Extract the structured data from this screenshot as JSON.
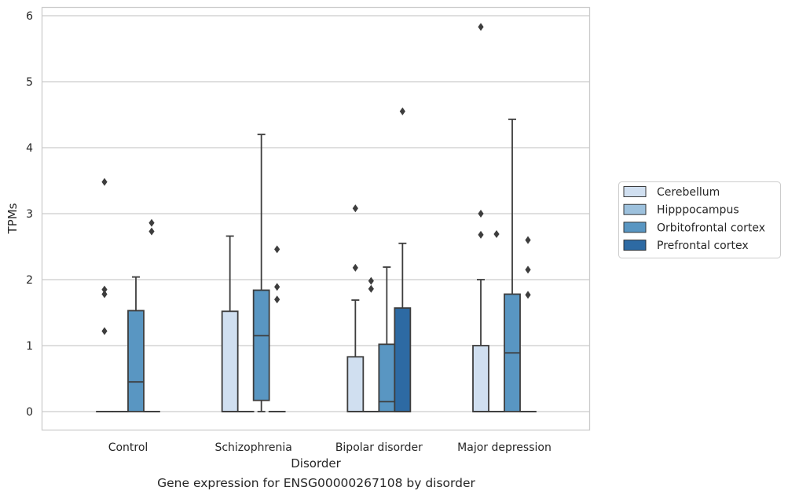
{
  "chart_data": {
    "type": "box",
    "title": "",
    "caption": "Gene expression for ENSG00000267108 by disorder",
    "xlabel": "Disorder",
    "ylabel": "TPMs",
    "ylim": [
      -0.28,
      6.14
    ],
    "yticks": [
      "0",
      "1",
      "2",
      "3",
      "4",
      "5",
      "6"
    ],
    "grid": "horizontal",
    "legend_position": "right",
    "categories": [
      "Control",
      "Schizophrenia",
      "Bipolar disorder",
      "Major depression"
    ],
    "series": [
      {
        "name": "Cerebellum",
        "color": "#d0dff0",
        "boxes": [
          {
            "q1": 0,
            "median": 0,
            "q3": 0,
            "whislo": 0,
            "whishi": 0,
            "fliers": [
              1.22,
              1.78,
              1.85,
              3.48
            ]
          },
          {
            "q1": 0,
            "median": 0,
            "q3": 1.52,
            "whislo": 0,
            "whishi": 2.66,
            "fliers": []
          },
          {
            "q1": 0,
            "median": 0,
            "q3": 0.83,
            "whislo": 0,
            "whishi": 1.69,
            "fliers": [
              2.18,
              3.08
            ]
          },
          {
            "q1": 0,
            "median": 0,
            "q3": 1.0,
            "whislo": 0,
            "whishi": 2.0,
            "fliers": [
              2.68,
              3.0,
              5.83
            ]
          }
        ]
      },
      {
        "name": "Hipppocampus",
        "color": "#9dc1dd",
        "boxes": [
          {
            "q1": 0,
            "median": 0,
            "q3": 0,
            "whislo": 0,
            "whishi": 0,
            "fliers": []
          },
          {
            "q1": 0,
            "median": 0,
            "q3": 0,
            "whislo": 0,
            "whishi": 0,
            "fliers": []
          },
          {
            "q1": 0,
            "median": 0,
            "q3": 0,
            "whislo": 0,
            "whishi": 0,
            "fliers": [
              1.86,
              1.98
            ]
          },
          {
            "q1": 0,
            "median": 0,
            "q3": 0,
            "whislo": 0,
            "whishi": 0,
            "fliers": [
              2.69
            ]
          }
        ]
      },
      {
        "name": "Orbitofrontal cortex",
        "color": "#5996c2",
        "boxes": [
          {
            "q1": 0,
            "median": 0.45,
            "q3": 1.53,
            "whislo": 0,
            "whishi": 2.04,
            "fliers": []
          },
          {
            "q1": 0.17,
            "median": 1.15,
            "q3": 1.84,
            "whislo": 0,
            "whishi": 4.2,
            "fliers": []
          },
          {
            "q1": 0,
            "median": 0.15,
            "q3": 1.02,
            "whislo": 0,
            "whishi": 2.19,
            "fliers": []
          },
          {
            "q1": 0,
            "median": 0.89,
            "q3": 1.78,
            "whislo": 0,
            "whishi": 4.43,
            "fliers": []
          }
        ]
      },
      {
        "name": "Prefrontal cortex",
        "color": "#2d6aa3",
        "boxes": [
          {
            "q1": 0,
            "median": 0,
            "q3": 0,
            "whislo": 0,
            "whishi": 0,
            "fliers": [
              2.73,
              2.86
            ]
          },
          {
            "q1": 0,
            "median": 0,
            "q3": 0,
            "whislo": 0,
            "whishi": 0,
            "fliers": [
              1.7,
              1.89,
              2.46
            ]
          },
          {
            "q1": 0,
            "median": 0,
            "q3": 1.57,
            "whislo": 0,
            "whishi": 2.55,
            "fliers": [
              4.55
            ]
          },
          {
            "q1": 0,
            "median": 0,
            "q3": 0,
            "whislo": 0,
            "whishi": 0,
            "fliers": [
              1.77,
              2.15,
              2.6
            ]
          }
        ]
      }
    ]
  }
}
